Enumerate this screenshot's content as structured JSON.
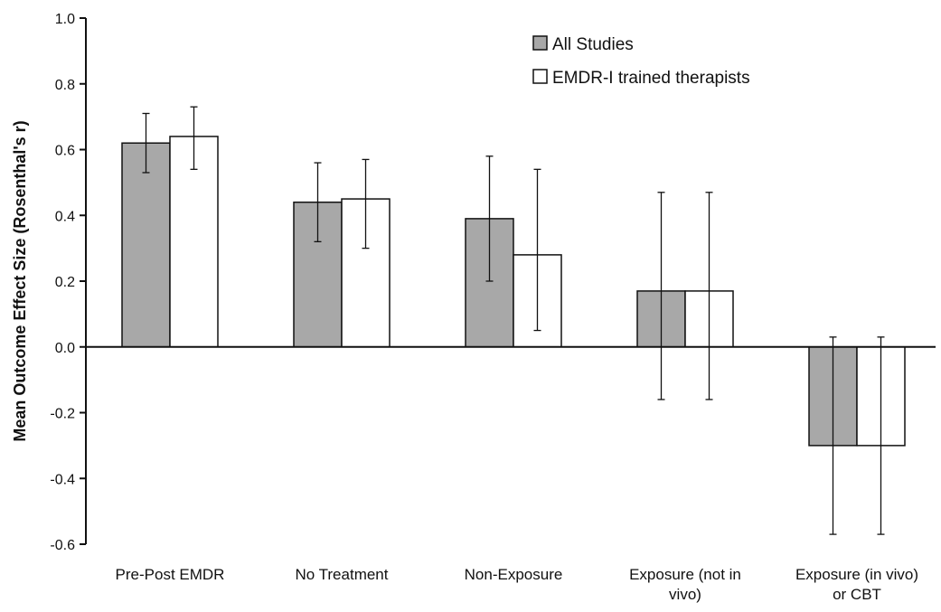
{
  "chart_data": {
    "type": "bar",
    "categories": [
      [
        "Pre-Post EMDR"
      ],
      [
        "No Treatment"
      ],
      [
        "Non-Exposure"
      ],
      [
        "Exposure (not in",
        "vivo)"
      ],
      [
        "Exposure (in vivo)",
        "or CBT"
      ]
    ],
    "series": [
      {
        "name": "All Studies",
        "values": [
          0.62,
          0.44,
          0.39,
          0.17,
          -0.3
        ],
        "error_low": [
          0.53,
          0.32,
          0.2,
          -0.16,
          -0.57
        ],
        "error_high": [
          0.71,
          0.56,
          0.58,
          0.47,
          0.03
        ],
        "color": "#a8a8a8"
      },
      {
        "name": "EMDR-I trained therapists",
        "values": [
          0.64,
          0.45,
          0.28,
          0.17,
          -0.3
        ],
        "error_low": [
          0.54,
          0.3,
          0.05,
          -0.16,
          -0.57
        ],
        "error_high": [
          0.73,
          0.57,
          0.54,
          0.47,
          0.03
        ],
        "color": "#ffffff"
      }
    ],
    "ylabel": "Mean Outcome Effect Size (Rosenthal's r)",
    "ylim": [
      -0.6,
      1.0
    ],
    "yticks": [
      "1.0",
      "0.8",
      "0.6",
      "0.4",
      "0.2",
      "0.0",
      "-0.2",
      "-0.4",
      "-0.6"
    ],
    "ytick_values": [
      1.0,
      0.8,
      0.6,
      0.4,
      0.2,
      0.0,
      -0.2,
      -0.4,
      -0.6
    ],
    "legend_position": "top-right",
    "grid": false
  }
}
